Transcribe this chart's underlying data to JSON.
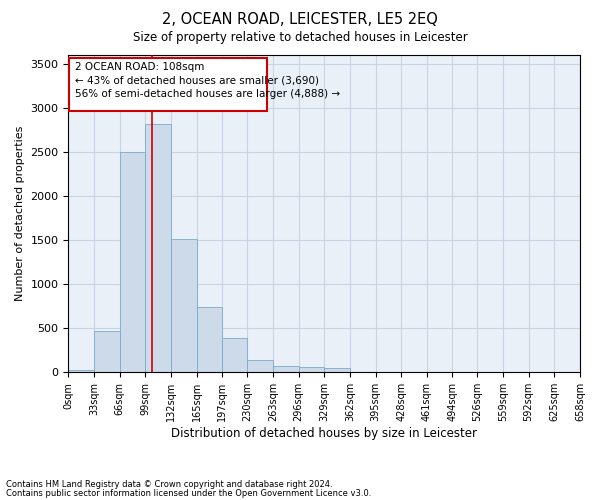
{
  "title": "2, OCEAN ROAD, LEICESTER, LE5 2EQ",
  "subtitle": "Size of property relative to detached houses in Leicester",
  "xlabel": "Distribution of detached houses by size in Leicester",
  "ylabel": "Number of detached properties",
  "bar_color": "#ccdaea",
  "bar_edge_color": "#7aaac8",
  "grid_color": "#c8d4e4",
  "background_color": "#eaf0f8",
  "annotation_box_color": "#cc0000",
  "property_line_color": "#cc0000",
  "property_size": 108,
  "annotation_title": "2 OCEAN ROAD: 108sqm",
  "annotation_line1": "← 43% of detached houses are smaller (3,690)",
  "annotation_line2": "56% of semi-detached houses are larger (4,888) →",
  "footnote1": "Contains HM Land Registry data © Crown copyright and database right 2024.",
  "footnote2": "Contains public sector information licensed under the Open Government Licence v3.0.",
  "bin_labels": [
    "0sqm",
    "33sqm",
    "66sqm",
    "99sqm",
    "132sqm",
    "165sqm",
    "197sqm",
    "230sqm",
    "263sqm",
    "296sqm",
    "329sqm",
    "362sqm",
    "395sqm",
    "428sqm",
    "461sqm",
    "494sqm",
    "526sqm",
    "559sqm",
    "592sqm",
    "625sqm",
    "658sqm"
  ],
  "bar_values": [
    30,
    470,
    2500,
    2820,
    1510,
    740,
    390,
    140,
    70,
    55,
    50,
    0,
    0,
    0,
    0,
    0,
    0,
    0,
    0,
    0
  ],
  "bin_edges": [
    0,
    33,
    66,
    99,
    132,
    165,
    197,
    230,
    263,
    296,
    329,
    362,
    395,
    428,
    461,
    494,
    526,
    559,
    592,
    625,
    658
  ],
  "ylim": [
    0,
    3600
  ],
  "yticks": [
    0,
    500,
    1000,
    1500,
    2000,
    2500,
    3000,
    3500
  ]
}
